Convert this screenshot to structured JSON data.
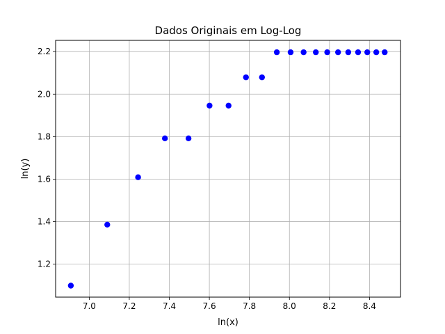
{
  "chart_data": {
    "type": "scatter",
    "title": "Dados Originais em Log-Log",
    "xlabel": "ln(x)",
    "ylabel": "ln(y)",
    "xlim": [
      6.832,
      8.555
    ],
    "ylim": [
      1.045,
      2.253
    ],
    "xticks": [
      7.0,
      7.2,
      7.4,
      7.6,
      7.8,
      8.0,
      8.2,
      8.4
    ],
    "xtick_labels": [
      "7.0",
      "7.2",
      "7.4",
      "7.6",
      "7.8",
      "8.0",
      "8.2",
      "8.4"
    ],
    "yticks": [
      1.2,
      1.4,
      1.6,
      1.8,
      2.0,
      2.2
    ],
    "ytick_labels": [
      "1.2",
      "1.4",
      "1.6",
      "1.8",
      "2.0",
      "2.2"
    ],
    "grid": true,
    "marker_color": "#0000ff",
    "series": [
      {
        "x": [
          6.908,
          7.09,
          7.244,
          7.378,
          7.496,
          7.601,
          7.696,
          7.783,
          7.863,
          7.937,
          8.006,
          8.071,
          8.132,
          8.189,
          8.243,
          8.294,
          8.343,
          8.389,
          8.434,
          8.476
        ],
        "y": [
          1.099,
          1.386,
          1.609,
          1.792,
          1.792,
          1.946,
          1.946,
          2.079,
          2.079,
          2.197,
          2.197,
          2.197,
          2.197,
          2.197,
          2.197,
          2.197,
          2.197,
          2.197,
          2.197,
          2.197
        ]
      }
    ]
  }
}
